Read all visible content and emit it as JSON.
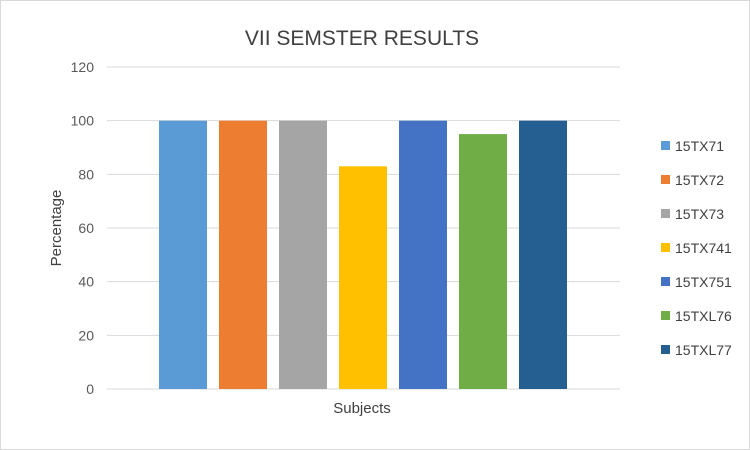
{
  "chart_data": {
    "type": "bar",
    "title": "VII SEMSTER RESULTS",
    "xlabel": "Subjects",
    "ylabel": "Percentage",
    "ylim": [
      0,
      120
    ],
    "yticks": [
      "0",
      "20",
      "40",
      "60",
      "80",
      "100",
      "120"
    ],
    "grid": true,
    "legend_position": "right",
    "series": [
      {
        "name": "15TX71",
        "value": 100,
        "color": "#5B9BD5"
      },
      {
        "name": "15TX72",
        "value": 100,
        "color": "#ED7D31"
      },
      {
        "name": "15TX73",
        "value": 100,
        "color": "#A5A5A5"
      },
      {
        "name": "15TX741",
        "value": 83,
        "color": "#FFC000"
      },
      {
        "name": "15TX751",
        "value": 100,
        "color": "#4472C4"
      },
      {
        "name": "15TXL76",
        "value": 95,
        "color": "#70AD47"
      },
      {
        "name": "15TXL77",
        "value": 100,
        "color": "#255E91"
      }
    ]
  }
}
